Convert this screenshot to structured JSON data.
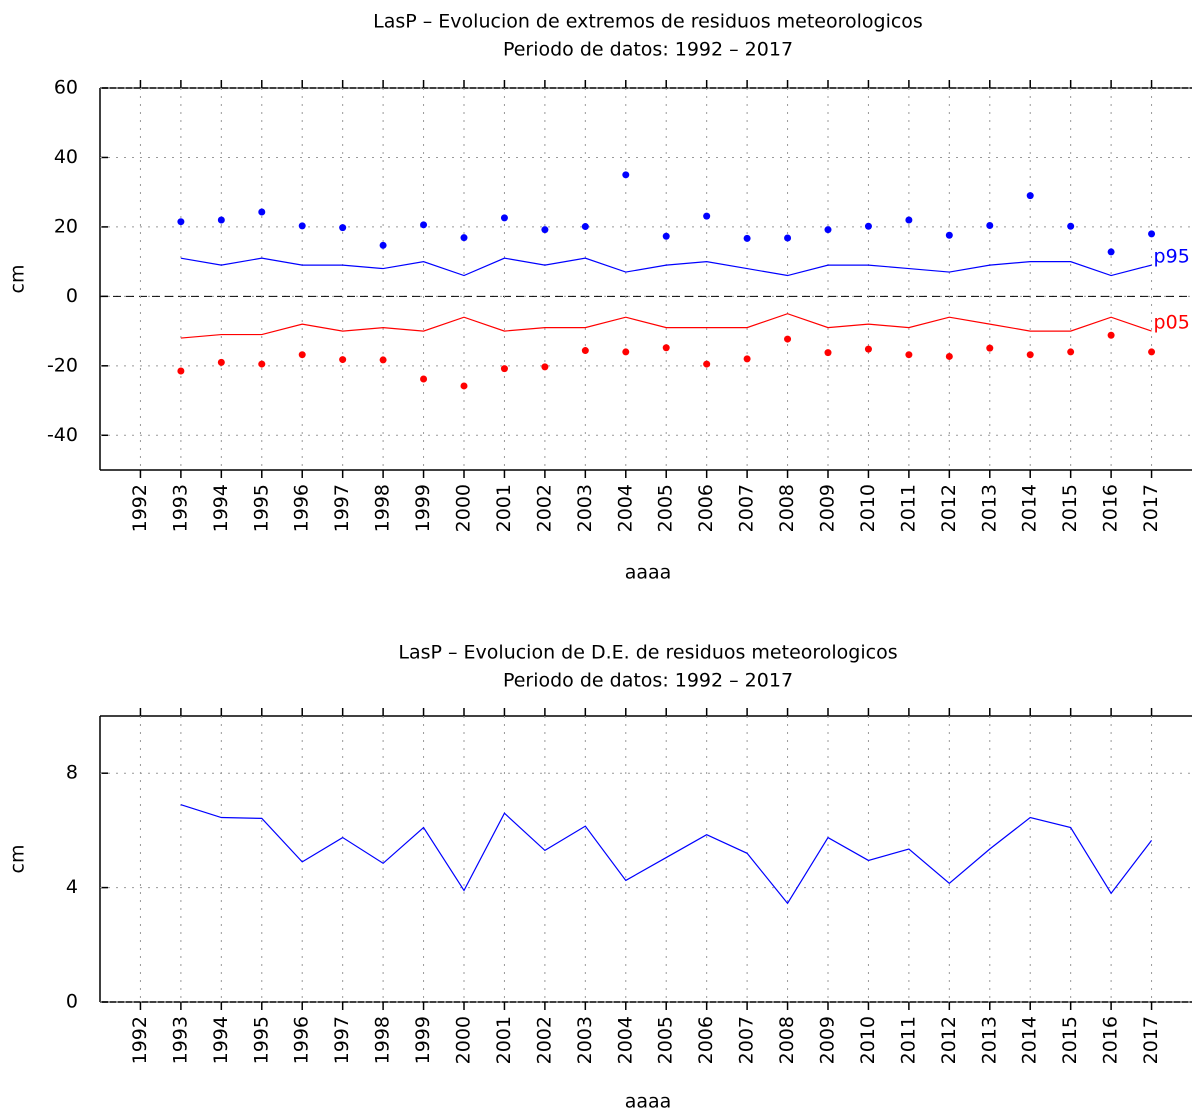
{
  "chart_data": [
    {
      "type": "line",
      "title": "LasP – Evolucion de extremos de residuos meteorologicos",
      "subtitle": "Periodo de datos: 1992 – 2017",
      "x_label": "aaaa",
      "y_label": "cm",
      "xlim": [
        1991,
        2018
      ],
      "xticks": [
        1992,
        1993,
        1994,
        1995,
        1996,
        1997,
        1998,
        1999,
        2000,
        2001,
        2002,
        2003,
        2004,
        2005,
        2006,
        2007,
        2008,
        2009,
        2010,
        2011,
        2012,
        2013,
        2014,
        2015,
        2016,
        2017
      ],
      "ylim": [
        -50,
        60
      ],
      "yticks": [
        -40,
        -20,
        0,
        20,
        40,
        60
      ],
      "grid": true,
      "zero_line": true,
      "x": [
        1993,
        1994,
        1995,
        1996,
        1997,
        1998,
        1999,
        2000,
        2001,
        2002,
        2003,
        2004,
        2005,
        2006,
        2007,
        2008,
        2009,
        2010,
        2011,
        2012,
        2013,
        2014,
        2015,
        2016,
        2017
      ],
      "series": [
        {
          "mode": "markers",
          "color": "#0000ff",
          "values": [
            21.5,
            22,
            24.3,
            20.3,
            19.8,
            14.7,
            20.6,
            16.9,
            22.6,
            19.2,
            20.1,
            35,
            17.3,
            23.1,
            16.7,
            16.8,
            19.2,
            20.2,
            22,
            17.6,
            20.4,
            29,
            20.2,
            12.8,
            18
          ]
        },
        {
          "name": "p95",
          "mode": "line",
          "color": "#0000ff",
          "values": [
            11,
            9,
            11,
            9,
            9,
            8,
            10,
            6,
            11,
            9,
            11,
            7,
            9,
            10,
            8,
            6,
            9,
            9,
            8,
            7,
            9,
            10,
            10,
            6,
            9
          ]
        },
        {
          "name": "p05",
          "mode": "line",
          "color": "#ff0000",
          "values": [
            -12,
            -11,
            -11,
            -8,
            -10,
            -9,
            -10,
            -6,
            -10,
            -9,
            -9,
            -6,
            -9,
            -9,
            -9,
            -5,
            -9,
            -8,
            -9,
            -6,
            -8,
            -10,
            -10,
            -6,
            -10
          ]
        },
        {
          "mode": "markers",
          "color": "#ff0000",
          "values": [
            -21.5,
            -19,
            -19.5,
            -16.8,
            -18.2,
            -18.3,
            -23.8,
            -25.8,
            -20.8,
            -20.3,
            -15.6,
            -16,
            -14.8,
            -19.5,
            -18,
            -12.3,
            -16.2,
            -15.2,
            -16.8,
            -17.3,
            -14.9,
            -16.8,
            -16,
            -11.2,
            -16
          ]
        }
      ]
    },
    {
      "type": "line",
      "title": "LasP – Evolucion de D.E. de residuos meteorologicos",
      "subtitle": "Periodo de datos: 1992 – 2017",
      "x_label": "aaaa",
      "y_label": "cm",
      "xlim": [
        1991,
        2018
      ],
      "xticks": [
        1992,
        1993,
        1994,
        1995,
        1996,
        1997,
        1998,
        1999,
        2000,
        2001,
        2002,
        2003,
        2004,
        2005,
        2006,
        2007,
        2008,
        2009,
        2010,
        2011,
        2012,
        2013,
        2014,
        2015,
        2016,
        2017
      ],
      "ylim": [
        0,
        10
      ],
      "yticks": [
        0,
        4,
        8
      ],
      "grid": true,
      "zero_line": false,
      "x": [
        1993,
        1994,
        1995,
        1996,
        1997,
        1998,
        1999,
        2000,
        2001,
        2002,
        2003,
        2004,
        2005,
        2006,
        2007,
        2008,
        2009,
        2010,
        2011,
        2012,
        2013,
        2014,
        2015,
        2016,
        2017
      ],
      "series": [
        {
          "mode": "line",
          "color": "#0000ff",
          "values": [
            6.9,
            6.45,
            6.42,
            4.9,
            5.75,
            4.85,
            6.1,
            3.9,
            6.6,
            5.3,
            6.15,
            4.25,
            5.05,
            5.85,
            5.2,
            3.45,
            5.75,
            4.95,
            5.35,
            4.15,
            5.35,
            6.45,
            6.1,
            3.8,
            5.65
          ]
        }
      ]
    }
  ]
}
